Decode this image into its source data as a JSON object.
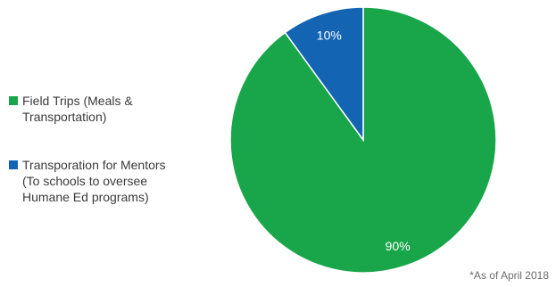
{
  "chart_data": {
    "type": "pie",
    "slices": [
      {
        "label": "Field Trips (Meals &\nTransportation)",
        "value": 90,
        "display": "90%",
        "color": "#19a64a"
      },
      {
        "label": "Transporation for Mentors\n(To schools to oversee\nHumane Ed programs)",
        "value": 10,
        "display": "10%",
        "color": "#1464b4"
      }
    ],
    "start": "12 o'clock",
    "direction": "clockwise",
    "legend_position": "left"
  },
  "footnote": "*As of April 2018"
}
